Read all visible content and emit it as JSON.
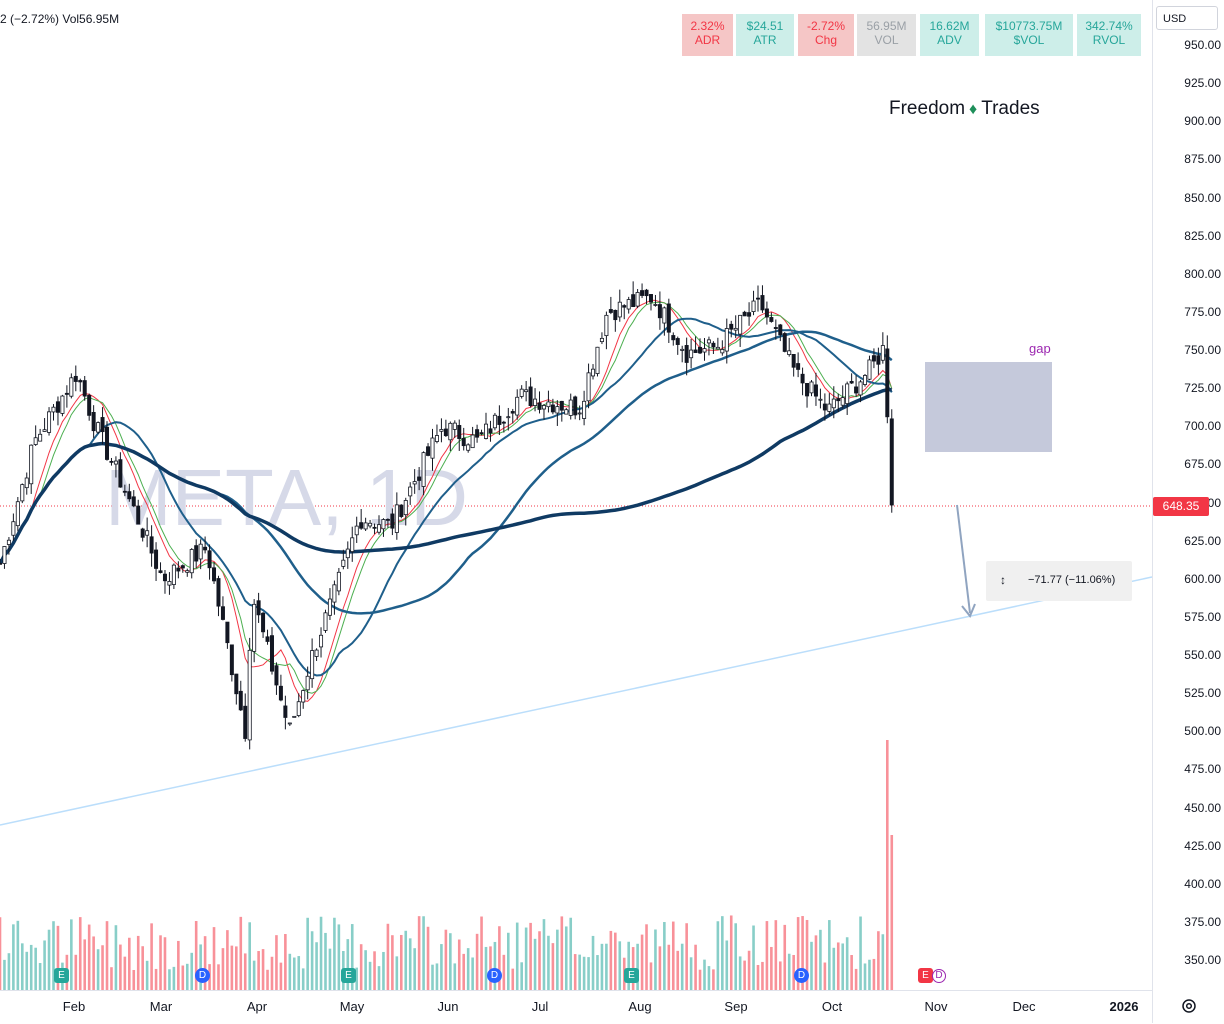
{
  "header": {
    "legend_text": "2 (−2.72%) Vol56.95M",
    "watermark": "META, 1D",
    "logo_left": "Freedom",
    "logo_icon": "diamond-dollar-icon",
    "logo_right": "Trades"
  },
  "stats": [
    {
      "value": "2.32%",
      "label": "ADR",
      "bg": "#f5c6c6",
      "color": "#f23645"
    },
    {
      "value": "$24.51",
      "label": "ATR",
      "bg": "#cdeee9",
      "color": "#26a69a"
    },
    {
      "value": "-2.72%",
      "label": "Chg",
      "bg": "#f5c6c6",
      "color": "#f23645"
    },
    {
      "value": "56.95M",
      "label": "VOL",
      "bg": "#e3e3e3",
      "color": "#9aa0a6"
    },
    {
      "value": "16.62M",
      "label": "ADV",
      "bg": "#cdeee9",
      "color": "#26a69a"
    },
    {
      "value": "$10773.75M",
      "label": "$VOL",
      "bg": "#cdeee9",
      "color": "#26a69a"
    },
    {
      "value": "342.74%",
      "label": "RVOL",
      "bg": "#cdeee9",
      "color": "#26a69a"
    }
  ],
  "price_axis": {
    "currency": "USD",
    "ticks": [
      "950.00",
      "925.00",
      "900.00",
      "875.00",
      "850.00",
      "825.00",
      "800.00",
      "775.00",
      "750.00",
      "725.00",
      "700.00",
      "675.00",
      "650.00",
      "625.00",
      "600.00",
      "575.00",
      "550.00",
      "525.00",
      "500.00",
      "475.00",
      "450.00",
      "425.00",
      "400.00",
      "375.00",
      "350.00"
    ],
    "last_price": "648.35"
  },
  "time_axis": {
    "months": [
      "Feb",
      "Mar",
      "Apr",
      "May",
      "Jun",
      "Jul",
      "Aug",
      "Sep",
      "Oct",
      "Nov",
      "Dec",
      "2026"
    ]
  },
  "annotations": {
    "gap_label": "gap",
    "measure_text": "−71.77 (−11.06%)"
  },
  "events": [
    {
      "type": "E",
      "label": "E"
    },
    {
      "type": "D",
      "label": "D"
    },
    {
      "type": "E",
      "label": "E"
    },
    {
      "type": "D",
      "label": "D"
    },
    {
      "type": "E",
      "label": "E"
    },
    {
      "type": "D",
      "label": "D"
    },
    {
      "type": "E2",
      "label": "E"
    },
    {
      "type": "D2",
      "label": "D"
    }
  ],
  "colors": {
    "up": "#26a69a",
    "down": "#f23645",
    "ma_fast": "#f23645",
    "ma_green": "#4caf50",
    "ma_blue": "#1f5f8b",
    "ma_dark": "#0f3a63",
    "trendline": "#bbdefb",
    "gap_box": "#c5c9db"
  },
  "chart_data": {
    "type": "candlestick",
    "symbol": "META",
    "interval": "1D",
    "ylim": [
      335,
      960
    ],
    "last_close": 648.35,
    "gap": {
      "top": 742,
      "bottom": 684
    },
    "measure": {
      "change": -71.77,
      "change_pct": -11.06
    },
    "anchors": [
      [
        "Jan-20",
        610
      ],
      [
        "Jan-31",
        690
      ],
      [
        "Feb-14",
        735
      ],
      [
        "Feb-20",
        700
      ],
      [
        "Mar-03",
        640
      ],
      [
        "Mar-11",
        600
      ],
      [
        "Mar-25",
        620
      ],
      [
        "Apr-07",
        500
      ],
      [
        "Apr-09",
        590
      ],
      [
        "Apr-21",
        500
      ],
      [
        "Apr-29",
        555
      ],
      [
        "May-05",
        590
      ],
      [
        "May-13",
        640
      ],
      [
        "May-23",
        635
      ],
      [
        "Jun-09",
        700
      ],
      [
        "Jun-20",
        690
      ],
      [
        "Jul-03",
        720
      ],
      [
        "Jul-22",
        712
      ],
      [
        "Jul-31",
        775
      ],
      [
        "Aug-15",
        785
      ],
      [
        "Aug-26",
        748
      ],
      [
        "Sep-05",
        752
      ],
      [
        "Sep-19",
        780
      ],
      [
        "Sep-30",
        735
      ],
      [
        "Oct-10",
        710
      ],
      [
        "Oct-24",
        738
      ],
      [
        "Oct-28",
        752
      ],
      [
        "Oct-30",
        668
      ],
      [
        "Oct-31",
        648
      ]
    ]
  }
}
